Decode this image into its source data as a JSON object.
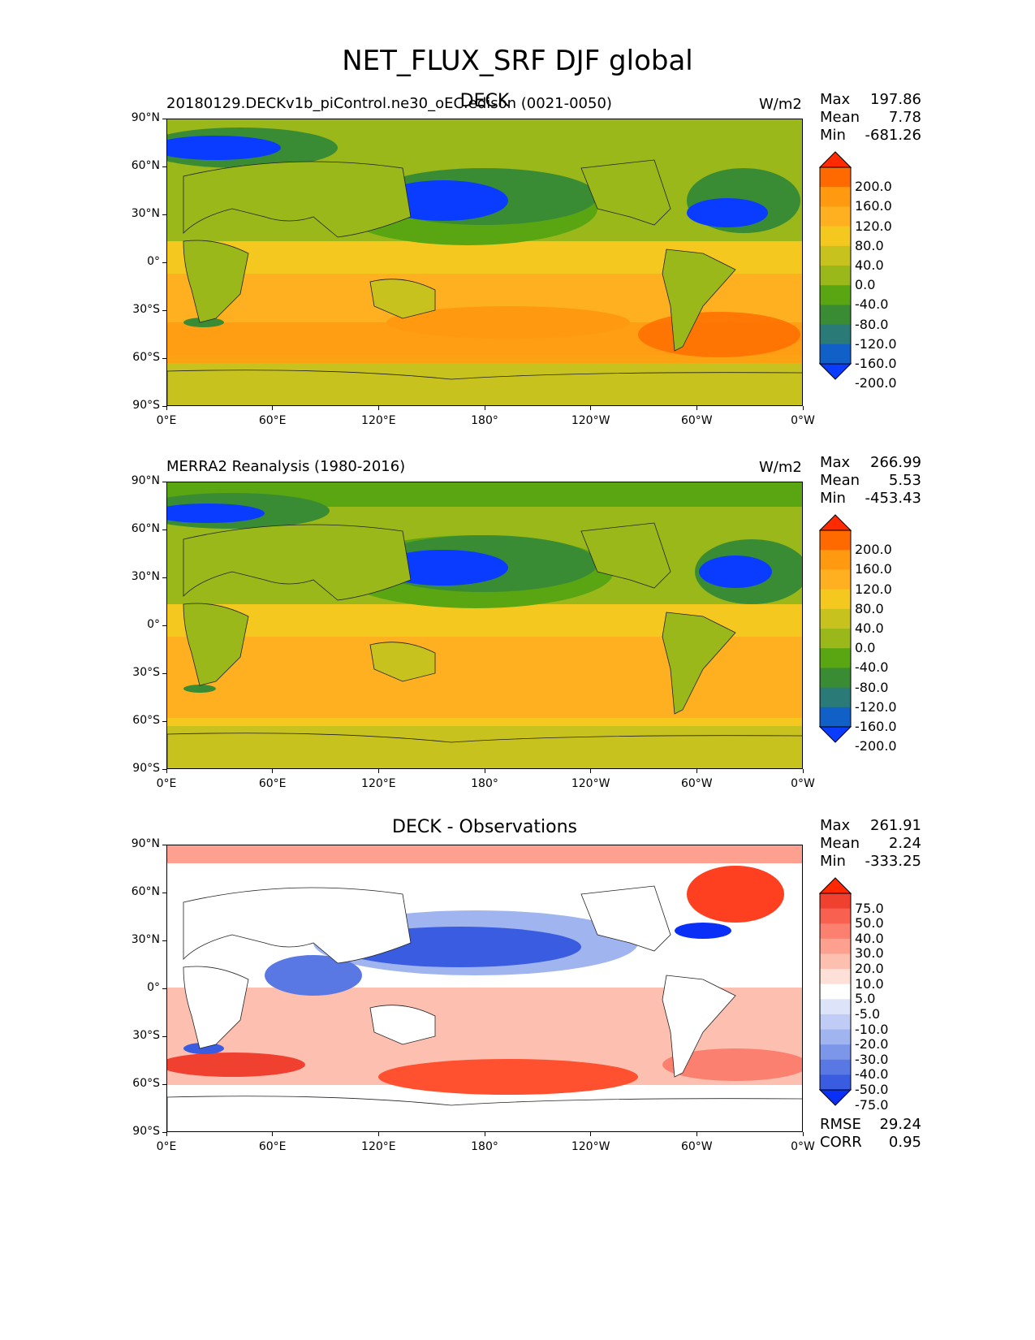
{
  "title": "NET_FLUX_SRF DJF global",
  "x_ticks": [
    "0°E",
    "60°E",
    "120°E",
    "180°",
    "120°W",
    "60°W",
    "0°W"
  ],
  "y_ticks": [
    "90°N",
    "60°N",
    "30°N",
    "0°",
    "30°S",
    "60°S",
    "90°S"
  ],
  "panels": [
    {
      "left_title": "20180129.DECKv1b_piControl.ne30_oEC.edison (0021-0050)",
      "center_title": "DECK",
      "units": "W/m2",
      "stats": {
        "max_label": "Max",
        "max": "197.86",
        "mean_label": "Mean",
        "mean": "7.78",
        "min_label": "Min",
        "min": "-681.26"
      },
      "colorbar": {
        "labels": [
          "200.0",
          "160.0",
          "120.0",
          "80.0",
          "40.0",
          "0.0",
          "-40.0",
          "-80.0",
          "-120.0",
          "-160.0",
          "-200.0"
        ],
        "colors": [
          "#ff2a00",
          "#ff6a00",
          "#ff9a10",
          "#ffb020",
          "#f5c820",
          "#c8c21e",
          "#9ab81a",
          "#5aa612",
          "#3a8c34",
          "#2a7a78",
          "#1060c8",
          "#0a3cff"
        ]
      }
    },
    {
      "left_title": "MERRA2 Reanalysis (1980-2016)",
      "center_title": "",
      "units": "W/m2",
      "stats": {
        "max_label": "Max",
        "max": "266.99",
        "mean_label": "Mean",
        "mean": "5.53",
        "min_label": "Min",
        "min": "-453.43"
      },
      "colorbar": {
        "labels": [
          "200.0",
          "160.0",
          "120.0",
          "80.0",
          "40.0",
          "0.0",
          "-40.0",
          "-80.0",
          "-120.0",
          "-160.0",
          "-200.0"
        ],
        "colors": [
          "#ff2a00",
          "#ff6a00",
          "#ff9a10",
          "#ffb020",
          "#f5c820",
          "#c8c21e",
          "#9ab81a",
          "#5aa612",
          "#3a8c34",
          "#2a7a78",
          "#1060c8",
          "#0a3cff"
        ]
      }
    },
    {
      "left_title": "",
      "center_title": "DECK - Observations",
      "units": "",
      "stats": {
        "max_label": "Max",
        "max": "261.91",
        "mean_label": "Mean",
        "mean": "2.24",
        "min_label": "Min",
        "min": "-333.25"
      },
      "metrics": {
        "rmse_label": "RMSE",
        "rmse": "29.24",
        "corr_label": "CORR",
        "corr": "0.95"
      },
      "colorbar": {
        "labels": [
          "75.0",
          "50.0",
          "40.0",
          "30.0",
          "20.0",
          "10.0",
          "5.0",
          "-5.0",
          "-10.0",
          "-20.0",
          "-30.0",
          "-40.0",
          "-50.0",
          "-75.0"
        ],
        "colors": [
          "#ff2800",
          "#f04030",
          "#f86050",
          "#fc8070",
          "#fda090",
          "#fdc0b0",
          "#fee0d8",
          "#ffffff",
          "#dde4fa",
          "#c0ccf6",
          "#a0b4f0",
          "#7c96ea",
          "#5a78e4",
          "#3a5ce0",
          "#0a30f8"
        ]
      }
    }
  ]
}
